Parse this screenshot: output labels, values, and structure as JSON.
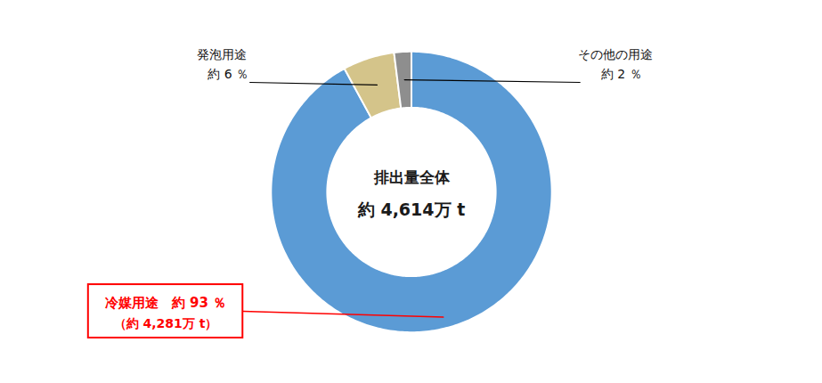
{
  "chart_data": {
    "type": "pie",
    "values": [
      93,
      6,
      2
    ],
    "colors": [
      "#5B9BD5",
      "#D4C48A",
      "#8E8E8E"
    ],
    "center_text": [
      "排出量全体",
      "約 4,614万 t"
    ],
    "annotations": [
      [
        "冷媒用途　約 93 ％",
        "（約 4,281万 t）"
      ],
      [
        "発泡用途",
        "　約 6 ％"
      ],
      [
        "その他の用途",
        "　約 2 ％"
      ]
    ],
    "tick_labels": false
  }
}
